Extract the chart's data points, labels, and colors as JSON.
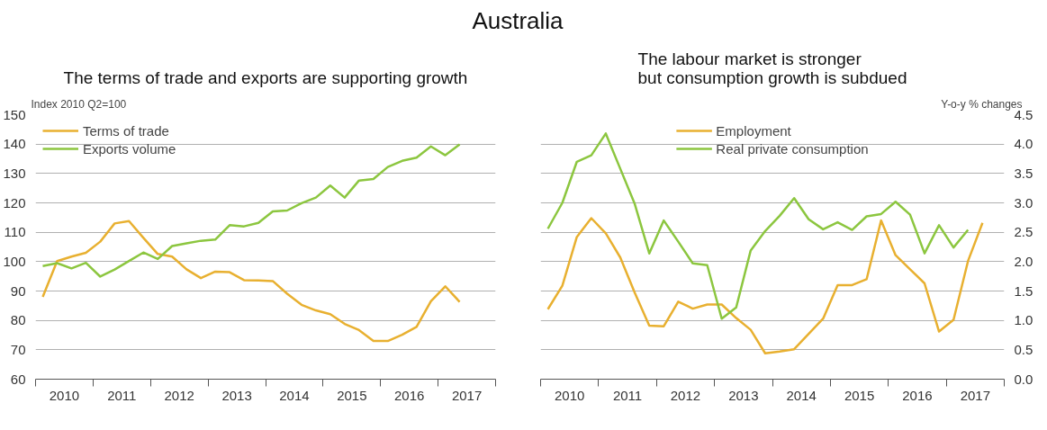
{
  "chart_data": [
    {
      "type": "line",
      "title": "The terms of trade and exports are supporting growth",
      "ylabel": "Index 2010 Q2=100",
      "annotations": [
        "Australia"
      ],
      "x": [
        2010.125,
        2010.375,
        2010.625,
        2010.875,
        2011.125,
        2011.375,
        2011.625,
        2011.875,
        2012.125,
        2012.375,
        2012.625,
        2012.875,
        2013.125,
        2013.375,
        2013.625,
        2013.875,
        2014.125,
        2014.375,
        2014.625,
        2014.875,
        2015.125,
        2015.375,
        2015.625,
        2015.875,
        2016.125,
        2016.375,
        2016.625,
        2016.875,
        2017.125,
        2017.375
      ],
      "series": [
        {
          "name": "Terms of trade",
          "color": "#e8b030",
          "values": [
            88,
            100.2,
            101.7,
            103.0,
            106.8,
            113.0,
            113.8,
            108.1,
            102.6,
            101.7,
            97.4,
            94.4,
            96.6,
            96.4,
            93.7,
            93.6,
            93.4,
            89.1,
            85.3,
            83.4,
            82.1,
            78.8,
            76.7,
            73.0,
            73.0,
            75.1,
            77.8,
            86.5,
            91.6,
            86.3
          ]
        },
        {
          "name": "Exports volume",
          "color": "#8cc63f",
          "values": [
            98.5,
            99.5,
            97.7,
            99.6,
            94.9,
            97.3,
            100.2,
            103.1,
            100.9,
            105.3,
            106.2,
            107.1,
            107.5,
            112.4,
            112.0,
            113.2,
            117.1,
            117.4,
            119.9,
            121.8,
            125.9,
            121.8,
            127.6,
            128.1,
            132.2,
            134.3,
            135.4,
            139.2,
            136.2,
            139.9
          ]
        }
      ],
      "xlim": [
        2010,
        2018
      ],
      "xticks": [
        {
          "value": 2010,
          "label": null
        },
        {
          "value": 2010.5,
          "label": "2010"
        },
        {
          "value": 2011,
          "label": null
        },
        {
          "value": 2011.5,
          "label": "2011"
        },
        {
          "value": 2012,
          "label": null
        },
        {
          "value": 2012.5,
          "label": "2012"
        },
        {
          "value": 2013,
          "label": null
        },
        {
          "value": 2013.5,
          "label": "2013"
        },
        {
          "value": 2014,
          "label": null
        },
        {
          "value": 2014.5,
          "label": "2014"
        },
        {
          "value": 2015,
          "label": null
        },
        {
          "value": 2015.5,
          "label": "2015"
        },
        {
          "value": 2016,
          "label": null
        },
        {
          "value": 2016.5,
          "label": "2016"
        },
        {
          "value": 2017,
          "label": null
        },
        {
          "value": 2017.5,
          "label": "2017"
        },
        {
          "value": 2018,
          "label": null
        }
      ],
      "ylim": [
        60,
        150
      ],
      "yticks": [
        60,
        70,
        80,
        90,
        100,
        110,
        120,
        130,
        140,
        150
      ],
      "grid": "y",
      "legend": "top left",
      "line_style": "solid",
      "marker": "none"
    },
    {
      "type": "line",
      "title": "The labour market is stronger\nbut consumption growth is subdued",
      "y2label": "Y-o-y % changes",
      "series": [
        {
          "name": "Employment",
          "color": "#e8b030",
          "axis": "y2",
          "x": [
            2010.125,
            2010.375,
            2010.625,
            2010.875,
            2011.125,
            2011.375,
            2011.625,
            2011.875,
            2012.125,
            2012.375,
            2012.625,
            2012.875,
            2013.125,
            2013.375,
            2013.625,
            2013.875,
            2014.125,
            2014.375,
            2014.625,
            2014.875,
            2015.125,
            2015.375,
            2015.625,
            2015.875,
            2016.125,
            2016.375,
            2016.625,
            2016.875,
            2017.125,
            2017.375,
            2017.625
          ],
          "values": [
            1.19,
            1.59,
            2.42,
            2.74,
            2.48,
            2.07,
            1.47,
            0.91,
            0.9,
            1.32,
            1.2,
            1.27,
            1.27,
            1.04,
            0.84,
            0.44,
            0.47,
            0.51,
            0.77,
            1.03,
            1.6,
            1.6,
            1.7,
            2.7,
            2.11,
            1.87,
            1.63,
            0.81,
            1.01,
            2.01,
            2.66
          ]
        },
        {
          "name": "Real private consumption",
          "color": "#8cc63f",
          "axis": "y2",
          "x": [
            2010.125,
            2010.375,
            2010.625,
            2010.875,
            2011.125,
            2011.375,
            2011.625,
            2011.875,
            2012.125,
            2012.375,
            2012.625,
            2012.875,
            2013.125,
            2013.375,
            2013.625,
            2013.875,
            2014.125,
            2014.375,
            2014.625,
            2014.875,
            2015.125,
            2015.375,
            2015.625,
            2015.875,
            2016.125,
            2016.375,
            2016.625,
            2016.875,
            2017.125,
            2017.375
          ],
          "values": [
            2.56,
            3.0,
            3.7,
            3.81,
            4.18,
            3.58,
            2.98,
            2.14,
            2.7,
            2.34,
            1.97,
            1.94,
            1.03,
            1.22,
            2.19,
            2.52,
            2.78,
            3.08,
            2.72,
            2.55,
            2.67,
            2.54,
            2.77,
            2.81,
            3.02,
            2.8,
            2.14,
            2.62,
            2.24,
            2.54
          ]
        }
      ],
      "xlim": [
        2010,
        2018
      ],
      "xticks": [
        {
          "value": 2010,
          "label": null
        },
        {
          "value": 2010.5,
          "label": "2010"
        },
        {
          "value": 2011,
          "label": null
        },
        {
          "value": 2011.5,
          "label": "2011"
        },
        {
          "value": 2012,
          "label": null
        },
        {
          "value": 2012.5,
          "label": "2012"
        },
        {
          "value": 2013,
          "label": null
        },
        {
          "value": 2013.5,
          "label": "2013"
        },
        {
          "value": 2014,
          "label": null
        },
        {
          "value": 2014.5,
          "label": "2014"
        },
        {
          "value": 2015,
          "label": null
        },
        {
          "value": 2015.5,
          "label": "2015"
        },
        {
          "value": 2016,
          "label": null
        },
        {
          "value": 2016.5,
          "label": "2016"
        },
        {
          "value": 2017,
          "label": null
        },
        {
          "value": 2017.5,
          "label": "2017"
        },
        {
          "value": 2018,
          "label": null
        }
      ],
      "y2lim": [
        0,
        4.5
      ],
      "y2ticks": [
        {
          "value": 0,
          "label": "0.0"
        },
        {
          "value": 0.5,
          "label": "0.5"
        },
        {
          "value": 1,
          "label": "1.0"
        },
        {
          "value": 1.5,
          "label": "1.5"
        },
        {
          "value": 2,
          "label": "2.0"
        },
        {
          "value": 2.5,
          "label": "2.5"
        },
        {
          "value": 3,
          "label": "3.0"
        },
        {
          "value": 3.5,
          "label": "3.5"
        },
        {
          "value": 4,
          "label": "4.0"
        },
        {
          "value": 4.5,
          "label": "4.5"
        }
      ],
      "tick_labels": "x",
      "grid": "y",
      "legend": "top",
      "line_style": "solid",
      "marker": "none"
    }
  ]
}
